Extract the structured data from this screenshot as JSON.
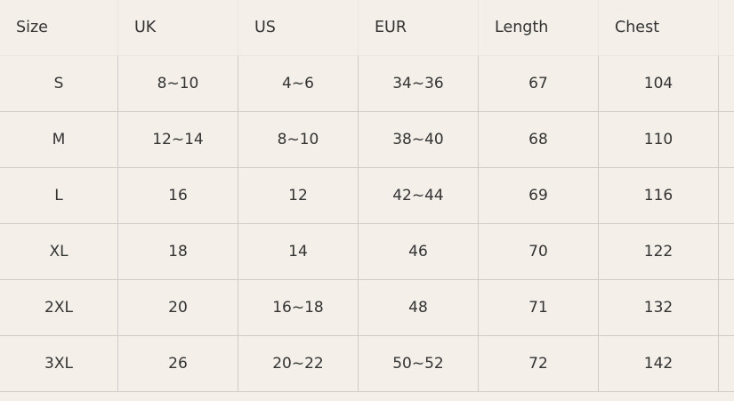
{
  "table": {
    "headers": [
      "Size",
      "UK",
      "US",
      "EUR",
      "Length",
      "Chest"
    ],
    "rows": [
      [
        "S",
        "8~10",
        "4~6",
        "34~36",
        "67",
        "104"
      ],
      [
        "M",
        "12~14",
        "8~10",
        "38~40",
        "68",
        "110"
      ],
      [
        "L",
        "16",
        "12",
        "42~44",
        "69",
        "116"
      ],
      [
        "XL",
        "18",
        "14",
        "46",
        "70",
        "122"
      ],
      [
        "2XL",
        "20",
        "16~18",
        "48",
        "71",
        "132"
      ],
      [
        "3XL",
        "26",
        "20~22",
        "50~52",
        "72",
        "142"
      ]
    ]
  }
}
